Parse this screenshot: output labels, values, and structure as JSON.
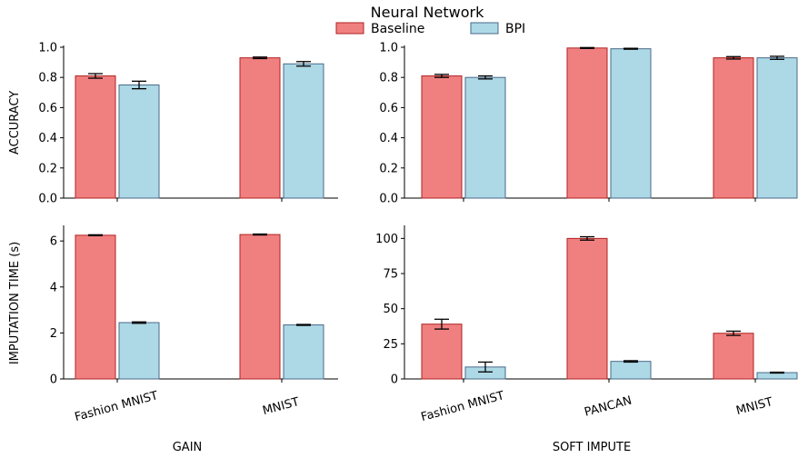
{
  "chart_data": {
    "type": "bar",
    "title": "Neural Network",
    "legend": {
      "placement": "top-center",
      "entries": [
        {
          "name": "Baseline",
          "color": "#f08080",
          "edge": "#b22222"
        },
        {
          "name": "BPI",
          "color": "#add8e6",
          "edge": "#4a6a8a"
        }
      ]
    },
    "grid": false,
    "panels": [
      {
        "id": "gain-accuracy",
        "ylabel": "ACCURACY",
        "xlabel": "",
        "ylim": [
          0,
          1.0
        ],
        "yticks": [
          "0.0",
          "0.2",
          "0.4",
          "0.6",
          "0.8",
          "1.0"
        ],
        "ytick_values": [
          0,
          0.2,
          0.4,
          0.6,
          0.8,
          1.0
        ],
        "categories": [
          "Fashion MNIST",
          "MNIST"
        ],
        "show_category_labels": false,
        "series": [
          {
            "name": "Baseline",
            "values": [
              0.81,
              0.93
            ],
            "errors": [
              0.015,
              0.005
            ]
          },
          {
            "name": "BPI",
            "values": [
              0.75,
              0.89
            ],
            "errors": [
              0.025,
              0.015
            ]
          }
        ]
      },
      {
        "id": "softimpute-accuracy",
        "ylabel": "",
        "xlabel": "",
        "ylim": [
          0,
          1.0
        ],
        "yticks": [
          "0.0",
          "0.2",
          "0.4",
          "0.6",
          "0.8",
          "1.0"
        ],
        "ytick_values": [
          0,
          0.2,
          0.4,
          0.6,
          0.8,
          1.0
        ],
        "categories": [
          "Fashion MNIST",
          "PANCAN",
          "MNIST"
        ],
        "show_category_labels": false,
        "series": [
          {
            "name": "Baseline",
            "values": [
              0.81,
              0.995,
              0.93
            ],
            "errors": [
              0.01,
              0.003,
              0.008
            ]
          },
          {
            "name": "BPI",
            "values": [
              0.8,
              0.99,
              0.93
            ],
            "errors": [
              0.01,
              0.003,
              0.01
            ]
          }
        ]
      },
      {
        "id": "gain-time",
        "ylabel": "IMPUTATION TIME (s)",
        "xlabel": "GAIN",
        "ylim": [
          0,
          6.6
        ],
        "yticks": [
          "0",
          "2",
          "4",
          "6"
        ],
        "ytick_values": [
          0,
          2,
          4,
          6
        ],
        "categories": [
          "Fashion MNIST",
          "MNIST"
        ],
        "show_category_labels": true,
        "series": [
          {
            "name": "Baseline",
            "values": [
              6.25,
              6.28
            ],
            "errors": [
              0.02,
              0.02
            ]
          },
          {
            "name": "BPI",
            "values": [
              2.45,
              2.35
            ],
            "errors": [
              0.03,
              0.02
            ]
          }
        ]
      },
      {
        "id": "softimpute-time",
        "ylabel": "",
        "xlabel": "SOFT IMPUTE",
        "ylim": [
          0,
          108
        ],
        "yticks": [
          "0",
          "25",
          "50",
          "75",
          "100"
        ],
        "ytick_values": [
          0,
          25,
          50,
          75,
          100
        ],
        "categories": [
          "Fashion MNIST",
          "PANCAN",
          "MNIST"
        ],
        "show_category_labels": true,
        "series": [
          {
            "name": "Baseline",
            "values": [
              39,
              100,
              32.5
            ],
            "errors": [
              3.5,
              1.2,
              1.5
            ]
          },
          {
            "name": "BPI",
            "values": [
              8.5,
              12.5,
              4.5
            ],
            "errors": [
              3.5,
              0.5,
              0.3
            ]
          }
        ]
      }
    ]
  }
}
